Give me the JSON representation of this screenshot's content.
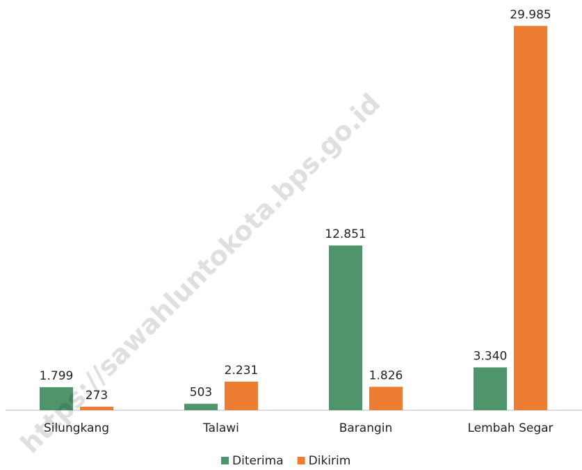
{
  "chart_data": {
    "type": "bar",
    "categories": [
      "Silungkang",
      "Talawi",
      "Barangin",
      "Lembah Segar"
    ],
    "series": [
      {
        "name": "Diterima",
        "color": "#4f956b",
        "values": [
          1799,
          503,
          12851,
          3340
        ],
        "value_labels": [
          "1.799",
          "503",
          "12.851",
          "3.340"
        ]
      },
      {
        "name": "Dikirim",
        "color": "#ed7d31",
        "values": [
          273,
          2231,
          1826,
          29985
        ],
        "value_labels": [
          "273",
          "2.231",
          "1.826",
          "29.985"
        ]
      }
    ],
    "ylim": [
      0,
      30000
    ],
    "legend": "bottom",
    "watermark": "https://sawahluntokota.bps.go.id"
  }
}
